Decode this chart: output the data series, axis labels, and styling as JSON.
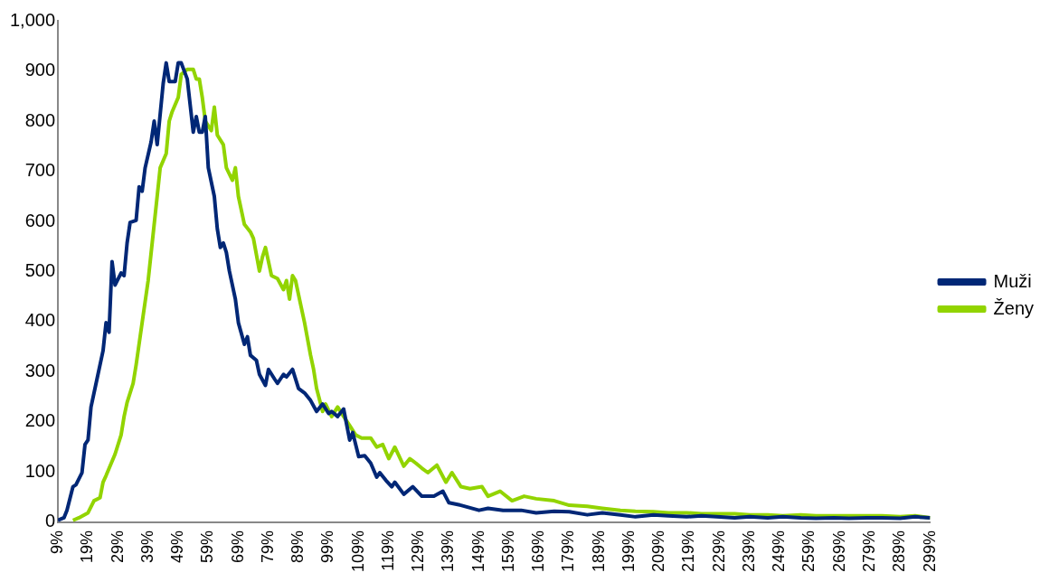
{
  "chart_data": {
    "type": "line",
    "legend": "right",
    "grid": false,
    "marker": "none",
    "line_style": "solid",
    "xlim": [
      9,
      299
    ],
    "xticks": [
      {
        "value": 9,
        "label": "9%"
      },
      {
        "value": 19,
        "label": "19%"
      },
      {
        "value": 29,
        "label": "29%"
      },
      {
        "value": 39,
        "label": "39%"
      },
      {
        "value": 49,
        "label": "49%"
      },
      {
        "value": 59,
        "label": "59%"
      },
      {
        "value": 69,
        "label": "69%"
      },
      {
        "value": 79,
        "label": "79%"
      },
      {
        "value": 89,
        "label": "89%"
      },
      {
        "value": 99,
        "label": "99%"
      },
      {
        "value": 109,
        "label": "109%"
      },
      {
        "value": 119,
        "label": "119%"
      },
      {
        "value": 129,
        "label": "129%"
      },
      {
        "value": 139,
        "label": "139%"
      },
      {
        "value": 149,
        "label": "149%"
      },
      {
        "value": 159,
        "label": "159%"
      },
      {
        "value": 169,
        "label": "169%"
      },
      {
        "value": 179,
        "label": "179%"
      },
      {
        "value": 189,
        "label": "189%"
      },
      {
        "value": 199,
        "label": "199%"
      },
      {
        "value": 209,
        "label": "209%"
      },
      {
        "value": 219,
        "label": "219%"
      },
      {
        "value": 229,
        "label": "229%"
      },
      {
        "value": 239,
        "label": "239%"
      },
      {
        "value": 249,
        "label": "249%"
      },
      {
        "value": 259,
        "label": "259%"
      },
      {
        "value": 269,
        "label": "269%"
      },
      {
        "value": 279,
        "label": "279%"
      },
      {
        "value": 289,
        "label": "289%"
      },
      {
        "value": 299,
        "label": "299%"
      }
    ],
    "ylim": [
      0,
      1000
    ],
    "yticks": [
      0,
      100,
      200,
      300,
      400,
      500,
      600,
      700,
      800,
      900,
      {
        "value": 1000,
        "label": "1,000"
      }
    ],
    "series": [
      {
        "name": "Muži",
        "color": "#002776",
        "x": [
          9,
          11,
          12,
          14,
          15,
          17,
          18,
          19,
          20,
          22,
          24,
          25,
          26,
          27,
          28,
          30,
          31,
          32,
          33,
          35,
          36,
          37,
          38,
          40,
          41,
          42,
          44,
          45,
          46,
          48,
          49,
          50,
          52,
          54,
          55,
          56,
          57,
          58,
          59,
          61,
          62,
          63,
          64,
          65,
          66,
          68,
          69,
          71,
          72,
          73,
          75,
          76,
          78,
          79,
          81,
          82,
          84,
          85,
          87,
          89,
          91,
          93,
          95,
          97,
          99,
          100,
          102,
          104,
          106,
          107,
          109,
          111,
          113,
          115,
          116,
          118,
          120,
          121,
          124,
          127,
          130,
          134,
          137,
          139,
          143,
          149,
          152,
          157,
          163,
          168,
          174,
          179,
          185,
          190,
          196,
          201,
          207,
          212,
          218,
          223,
          228,
          234,
          239,
          245,
          250,
          256,
          261,
          267,
          272,
          278,
          283,
          289,
          294,
          299
        ],
        "values": [
          4,
          9,
          24,
          71,
          75,
          99,
          155,
          164,
          230,
          286,
          342,
          398,
          379,
          520,
          473,
          497,
          492,
          557,
          598,
          602,
          669,
          660,
          707,
          759,
          800,
          753,
          875,
          916,
          879,
          879,
          916,
          916,
          884,
          778,
          809,
          778,
          778,
          809,
          707,
          650,
          585,
          548,
          557,
          538,
          501,
          445,
          398,
          355,
          370,
          333,
          323,
          295,
          273,
          305,
          286,
          277,
          295,
          290,
          305,
          267,
          258,
          243,
          221,
          236,
          217,
          221,
          211,
          226,
          164,
          179,
          131,
          133,
          118,
          90,
          99,
          84,
          71,
          80,
          56,
          71,
          52,
          52,
          62,
          39,
          34,
          24,
          28,
          24,
          24,
          19,
          22,
          21,
          15,
          19,
          15,
          11,
          15,
          13,
          11,
          13,
          11,
          9,
          11,
          9,
          11,
          9,
          8,
          9,
          8,
          9,
          9,
          8,
          11,
          9
        ]
      },
      {
        "name": "Ženy",
        "color": "#92d400",
        "x": [
          14,
          16,
          19,
          21,
          23,
          24,
          25,
          28,
          30,
          31,
          32,
          34,
          35,
          37,
          39,
          41,
          42,
          43,
          45,
          46,
          47,
          49,
          50,
          52,
          54,
          55,
          56,
          57,
          58,
          60,
          61,
          62,
          64,
          65,
          67,
          68,
          69,
          71,
          73,
          74,
          76,
          77,
          78,
          80,
          82,
          84,
          85,
          86,
          87,
          88,
          90,
          91,
          93,
          94,
          95,
          97,
          98,
          100,
          102,
          104,
          106,
          108,
          110,
          113,
          115,
          117,
          119,
          121,
          124,
          126,
          128,
          130,
          132,
          135,
          138,
          140,
          143,
          146,
          150,
          152,
          156,
          160,
          164,
          168,
          174,
          179,
          185,
          190,
          196,
          201,
          207,
          212,
          218,
          223,
          228,
          234,
          239,
          245,
          250,
          256,
          261,
          267,
          272,
          278,
          283,
          289,
          294,
          299
        ],
        "values": [
          4,
          9,
          19,
          43,
          49,
          80,
          93,
          136,
          174,
          211,
          239,
          277,
          314,
          398,
          482,
          594,
          650,
          707,
          735,
          800,
          819,
          847,
          893,
          903,
          903,
          884,
          884,
          847,
          800,
          781,
          828,
          772,
          753,
          707,
          682,
          707,
          650,
          594,
          579,
          566,
          501,
          529,
          548,
          492,
          486,
          464,
          482,
          445,
          492,
          482,
          426,
          398,
          333,
          305,
          267,
          221,
          236,
          211,
          230,
          211,
          193,
          174,
          168,
          168,
          150,
          155,
          127,
          150,
          112,
          127,
          118,
          108,
          99,
          114,
          80,
          99,
          71,
          67,
          71,
          52,
          62,
          43,
          52,
          47,
          43,
          34,
          32,
          28,
          24,
          22,
          21,
          19,
          19,
          17,
          17,
          17,
          15,
          15,
          13,
          15,
          13,
          13,
          13,
          13,
          13,
          11,
          13,
          9
        ]
      }
    ]
  }
}
